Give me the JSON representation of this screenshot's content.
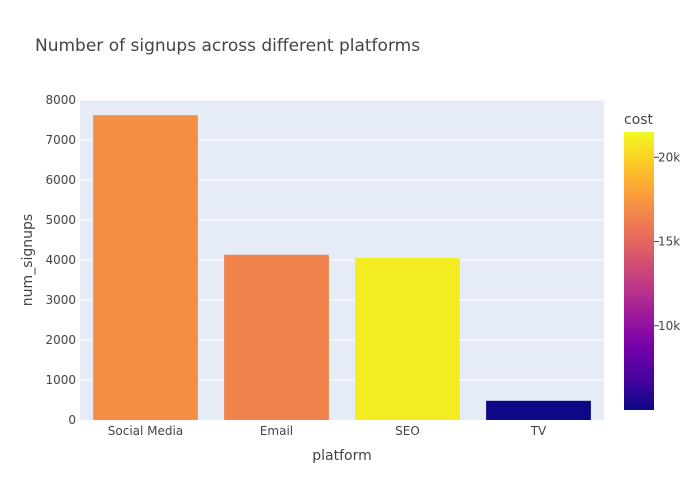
{
  "chart_data": {
    "type": "bar",
    "title": "Number of signups across different platforms",
    "xlabel": "platform",
    "ylabel": "num_signups",
    "categories": [
      "Social Media",
      "Email",
      "SEO",
      "TV"
    ],
    "values": [
      7620,
      4130,
      4050,
      480
    ],
    "color_values": [
      17000,
      16500,
      21000,
      5000
    ],
    "ylim": [
      0,
      8000
    ],
    "yticks": [
      0,
      1000,
      2000,
      3000,
      4000,
      5000,
      6000,
      7000,
      8000
    ],
    "colorbar": {
      "title": "cost",
      "range": [
        5000,
        21500
      ],
      "ticks": [
        10000,
        15000,
        20000
      ],
      "tick_labels": [
        "10k",
        "15k",
        "20k"
      ],
      "colorscale": [
        "#0d0887",
        "#46039f",
        "#7201a8",
        "#9c179e",
        "#bd3786",
        "#d8576b",
        "#ed7953",
        "#fb9f3a",
        "#fdca26",
        "#f0f921"
      ]
    },
    "grid": true,
    "plot_background": "#e5ecf6"
  }
}
